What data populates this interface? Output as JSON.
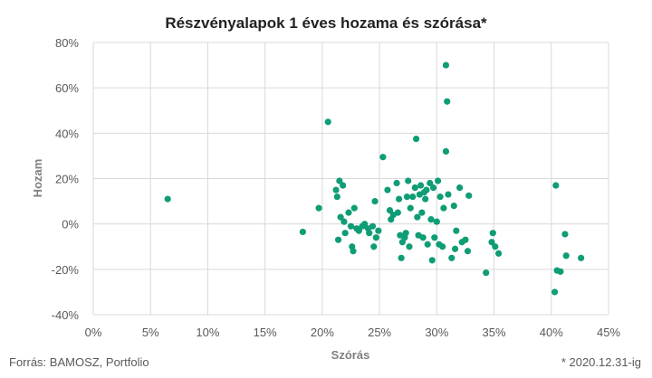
{
  "chart_data": {
    "type": "scatter",
    "title": "Részvényalapok 1 éves hozama és szórása*",
    "xlabel": "Szórás",
    "ylabel": "Hozam",
    "xlim": [
      0,
      45
    ],
    "ylim": [
      -40,
      80
    ],
    "x_ticks": [
      "0%",
      "5%",
      "10%",
      "15%",
      "20%",
      "25%",
      "30%",
      "35%",
      "40%",
      "45%"
    ],
    "y_ticks": [
      "-40%",
      "-20%",
      "0%",
      "20%",
      "40%",
      "60%",
      "80%"
    ],
    "x_tick_values": [
      0,
      5,
      10,
      15,
      20,
      25,
      30,
      35,
      40,
      45
    ],
    "y_tick_values": [
      -40,
      -20,
      0,
      20,
      40,
      60,
      80
    ],
    "grid": true,
    "color": "#0f9d76",
    "source": "Forrás: BAMOSZ, Portfolio",
    "footnote": "* 2020.12.31-ig",
    "points": [
      [
        6.5,
        11
      ],
      [
        18.3,
        -3.5
      ],
      [
        19.7,
        7
      ],
      [
        20.5,
        45
      ],
      [
        21.2,
        15
      ],
      [
        21.5,
        19
      ],
      [
        21.3,
        12
      ],
      [
        21.8,
        17
      ],
      [
        21.6,
        3
      ],
      [
        21.9,
        1
      ],
      [
        21.4,
        -7
      ],
      [
        22.0,
        -4
      ],
      [
        22.3,
        5
      ],
      [
        22.6,
        -10
      ],
      [
        22.8,
        7
      ],
      [
        22.5,
        -1
      ],
      [
        23.0,
        -2
      ],
      [
        23.2,
        -3
      ],
      [
        23.5,
        -1
      ],
      [
        23.7,
        0
      ],
      [
        24.0,
        -2
      ],
      [
        24.1,
        -4
      ],
      [
        24.4,
        -1
      ],
      [
        24.6,
        10
      ],
      [
        24.5,
        -10
      ],
      [
        24.7,
        -6
      ],
      [
        24.9,
        -3
      ],
      [
        22.7,
        -12
      ],
      [
        25.3,
        29.5
      ],
      [
        25.7,
        15
      ],
      [
        25.9,
        6
      ],
      [
        26.0,
        2
      ],
      [
        26.2,
        4
      ],
      [
        26.5,
        18
      ],
      [
        26.7,
        11
      ],
      [
        26.6,
        5
      ],
      [
        26.8,
        -5
      ],
      [
        27.0,
        -8
      ],
      [
        27.2,
        -6
      ],
      [
        27.4,
        12
      ],
      [
        27.5,
        19
      ],
      [
        27.7,
        7
      ],
      [
        27.9,
        12
      ],
      [
        28.1,
        16
      ],
      [
        28.2,
        37.5
      ],
      [
        28.3,
        3
      ],
      [
        28.5,
        13
      ],
      [
        28.6,
        17
      ],
      [
        28.7,
        5
      ],
      [
        28.9,
        14
      ],
      [
        29.0,
        11
      ],
      [
        29.2,
        -9
      ],
      [
        29.4,
        18
      ],
      [
        29.5,
        2
      ],
      [
        29.7,
        16
      ],
      [
        29.8,
        -6
      ],
      [
        30.0,
        1
      ],
      [
        30.1,
        19
      ],
      [
        30.3,
        12
      ],
      [
        30.5,
        -10
      ],
      [
        30.6,
        7
      ],
      [
        30.8,
        70
      ],
      [
        30.9,
        54
      ],
      [
        30.8,
        32
      ],
      [
        31.0,
        13
      ],
      [
        31.3,
        -15
      ],
      [
        31.5,
        8
      ],
      [
        31.7,
        -3
      ],
      [
        31.6,
        -11
      ],
      [
        32.0,
        16
      ],
      [
        32.2,
        -8
      ],
      [
        32.5,
        -7
      ],
      [
        32.8,
        12.5
      ],
      [
        32.7,
        -12
      ],
      [
        29.1,
        15
      ],
      [
        28.4,
        -5
      ],
      [
        27.6,
        -10
      ],
      [
        26.9,
        -15
      ],
      [
        27.3,
        -4
      ],
      [
        29.6,
        -16
      ],
      [
        30.2,
        -9
      ],
      [
        28.8,
        -6
      ],
      [
        34.3,
        -21.5
      ],
      [
        34.8,
        -8
      ],
      [
        34.9,
        -4
      ],
      [
        35.1,
        -10
      ],
      [
        35.4,
        -13
      ],
      [
        40.4,
        17
      ],
      [
        40.3,
        -30
      ],
      [
        40.5,
        -20.5
      ],
      [
        40.8,
        -21
      ],
      [
        41.2,
        -4.5
      ],
      [
        41.3,
        -14
      ],
      [
        42.6,
        -15
      ]
    ]
  }
}
